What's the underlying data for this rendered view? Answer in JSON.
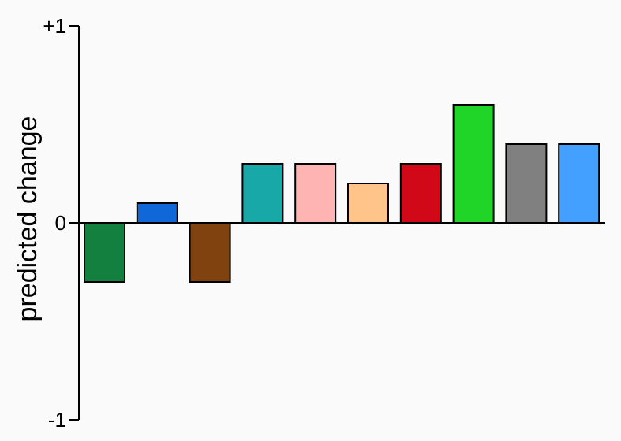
{
  "chart_data": {
    "type": "bar",
    "title": "",
    "xlabel": "",
    "ylabel": "predicted change",
    "ylim": [
      -1,
      1
    ],
    "yticks": [
      {
        "value": 1,
        "label": "+1"
      },
      {
        "value": 0,
        "label": "0"
      },
      {
        "value": -1,
        "label": "-1"
      }
    ],
    "grid": false,
    "series": [
      {
        "values": [
          -0.3,
          0.1,
          -0.3,
          0.3,
          0.3,
          0.2,
          0.3,
          0.6,
          0.4,
          0.4
        ],
        "colors": [
          "#148040",
          "#1068d8",
          "#80420e",
          "#18a8a8",
          "#ffb4b4",
          "#ffc48a",
          "#d00818",
          "#20d428",
          "#808080",
          "#44a0ff"
        ]
      }
    ]
  }
}
